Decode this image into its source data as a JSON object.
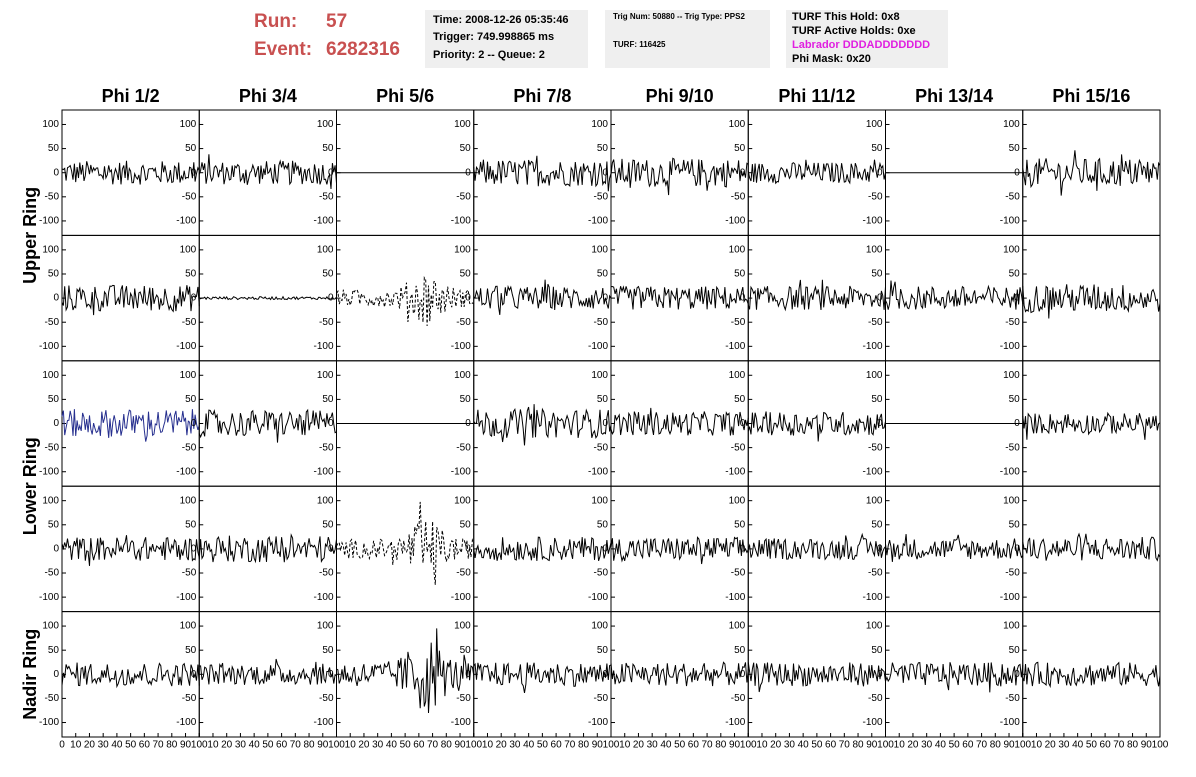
{
  "header": {
    "run_label": "Run:",
    "run": "57",
    "event_label": "Event:",
    "event": "6282316",
    "info1": [
      "Time: 2008-12-26 05:35:46",
      "Trigger: 749.998865 ms",
      "Priority: 2 -- Queue: 2"
    ],
    "info2": [
      "Trig Num: 50880 -- Trig Type: PPS2",
      "TURF: 116425"
    ],
    "info3": [
      "TURF This Hold: 0x8",
      "TURF Active Holds: 0xe",
      "Labrador DDDADDDDDDD",
      "Phi Mask: 0x20"
    ]
  },
  "columns": [
    "Phi 1/2",
    "Phi 3/4",
    "Phi 5/6",
    "Phi 7/8",
    "Phi 9/10",
    "Phi 11/12",
    "Phi 13/14",
    "Phi 15/16"
  ],
  "rings": [
    "Upper Ring",
    "Lower Ring",
    "Nadir Ring"
  ],
  "panel_ylim": [
    -130,
    130
  ],
  "panel_yticks": [
    100,
    50,
    0,
    -50,
    -100
  ],
  "panel_xlim": [
    0,
    100
  ],
  "panel_xticks": [
    0,
    10,
    20,
    30,
    40,
    50,
    60,
    70,
    80,
    90,
    100
  ],
  "traces": [
    [
      {
        "amplitude": 25
      },
      {
        "amplitude": 25
      },
      {
        "amplitude": 0
      },
      {
        "amplitude": 28
      },
      {
        "amplitude": 30
      },
      {
        "amplitude": 22
      },
      {
        "amplitude": 0
      },
      {
        "amplitude": 30
      }
    ],
    [
      {
        "amplitude": 28
      },
      {
        "amplitude": 3
      },
      {
        "amplitude": 45,
        "style": "dashed"
      },
      {
        "amplitude": 25
      },
      {
        "amplitude": 25
      },
      {
        "amplitude": 25
      },
      {
        "amplitude": 25
      },
      {
        "amplitude": 30
      }
    ],
    [
      {
        "amplitude": 30,
        "color": "#27308f"
      },
      {
        "amplitude": 28
      },
      {
        "amplitude": 0
      },
      {
        "amplitude": 30
      },
      {
        "amplitude": 25
      },
      {
        "amplitude": 25
      },
      {
        "amplitude": 0
      },
      {
        "amplitude": 22
      }
    ],
    [
      {
        "amplitude": 25
      },
      {
        "amplitude": 28
      },
      {
        "amplitude": 50,
        "style": "dashed"
      },
      {
        "amplitude": 25
      },
      {
        "amplitude": 25
      },
      {
        "amplitude": 22
      },
      {
        "amplitude": 22
      },
      {
        "amplitude": 25
      }
    ],
    [
      {
        "amplitude": 25
      },
      {
        "amplitude": 22
      },
      {
        "amplitude": 65
      },
      {
        "amplitude": 25
      },
      {
        "amplitude": 25
      },
      {
        "amplitude": 25
      },
      {
        "amplitude": 25
      },
      {
        "amplitude": 25
      }
    ]
  ]
}
